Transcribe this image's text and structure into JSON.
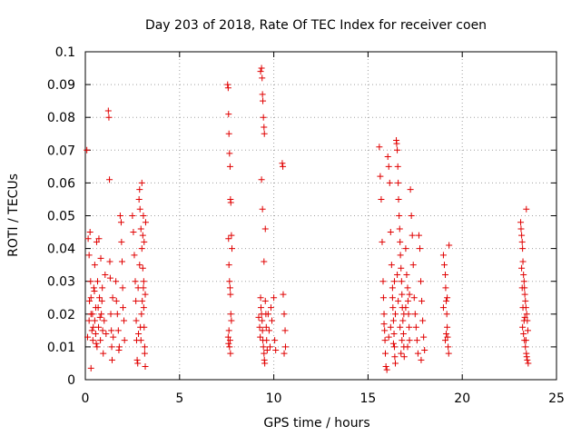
{
  "chart_data": {
    "type": "scatter",
    "title": "Day 203 of 2018, Rate Of TEC Index for receiver coen",
    "xlabel": "GPS time / hours",
    "ylabel": "ROTI / TECUs",
    "xlim": [
      0,
      25
    ],
    "ylim": [
      0,
      0.1
    ],
    "xticks": [
      "0",
      "5",
      "10",
      "15",
      "20",
      "25"
    ],
    "yticks": [
      "0",
      "0.01",
      "0.02",
      "0.03",
      "0.04",
      "0.05",
      "0.06",
      "0.07",
      "0.08",
      "0.09",
      "0.1"
    ],
    "grid": true,
    "marker": "plus",
    "color": "#e00000",
    "x_grid_values": [
      5,
      10,
      15,
      20
    ],
    "y_grid_values": [
      0.01,
      0.02,
      0.03,
      0.04,
      0.05,
      0.06,
      0.07,
      0.08,
      0.09
    ],
    "points": [
      [
        0.08,
        0.07
      ],
      [
        0.15,
        0.043
      ],
      [
        0.2,
        0.038
      ],
      [
        0.25,
        0.045
      ],
      [
        0.28,
        0.03
      ],
      [
        0.3,
        0.0035
      ],
      [
        0.3,
        0.025
      ],
      [
        0.35,
        0.015
      ],
      [
        0.38,
        0.02
      ],
      [
        0.4,
        0.012
      ],
      [
        0.45,
        0.028
      ],
      [
        0.5,
        0.018
      ],
      [
        0.5,
        0.035
      ],
      [
        0.55,
        0.022
      ],
      [
        0.6,
        0.042
      ],
      [
        0.62,
        0.01
      ],
      [
        0.65,
        0.03
      ],
      [
        0.7,
        0.016
      ],
      [
        0.72,
        0.043
      ],
      [
        0.75,
        0.025
      ],
      [
        0.8,
        0.012
      ],
      [
        0.82,
        0.037
      ],
      [
        0.85,
        0.02
      ],
      [
        0.9,
        0.028
      ],
      [
        0.95,
        0.008
      ],
      [
        1.0,
        0.018
      ],
      [
        1.05,
        0.032
      ],
      [
        1.1,
        0.014
      ],
      [
        0.2,
        0.018
      ],
      [
        0.3,
        0.02
      ],
      [
        0.42,
        0.016
      ],
      [
        0.55,
        0.014
      ],
      [
        0.68,
        0.022
      ],
      [
        0.78,
        0.019
      ],
      [
        0.88,
        0.024
      ],
      [
        0.12,
        0.013
      ],
      [
        0.22,
        0.024
      ],
      [
        0.48,
        0.027
      ],
      [
        0.58,
        0.011
      ],
      [
        0.92,
        0.015
      ],
      [
        1.22,
        0.082
      ],
      [
        1.25,
        0.08
      ],
      [
        1.28,
        0.061
      ],
      [
        1.3,
        0.036
      ],
      [
        1.32,
        0.031
      ],
      [
        1.35,
        0.02
      ],
      [
        1.38,
        0.015
      ],
      [
        1.4,
        0.01
      ],
      [
        1.42,
        0.006
      ],
      [
        1.45,
        0.025
      ],
      [
        1.48,
        0.013
      ],
      [
        1.62,
        0.03
      ],
      [
        1.65,
        0.024
      ],
      [
        1.7,
        0.02
      ],
      [
        1.75,
        0.015
      ],
      [
        1.8,
        0.01
      ],
      [
        1.85,
        0.05
      ],
      [
        1.9,
        0.048
      ],
      [
        1.92,
        0.042
      ],
      [
        1.95,
        0.036
      ],
      [
        1.98,
        0.028
      ],
      [
        2.0,
        0.022
      ],
      [
        2.05,
        0.018
      ],
      [
        2.08,
        0.012
      ],
      [
        1.78,
        0.009
      ],
      [
        2.5,
        0.05
      ],
      [
        2.55,
        0.045
      ],
      [
        2.6,
        0.038
      ],
      [
        2.65,
        0.03
      ],
      [
        2.68,
        0.024
      ],
      [
        2.7,
        0.018
      ],
      [
        2.72,
        0.012
      ],
      [
        2.75,
        0.006
      ],
      [
        2.78,
        0.005
      ],
      [
        2.8,
        0.028
      ],
      [
        2.85,
        0.055
      ],
      [
        2.88,
        0.058
      ],
      [
        2.9,
        0.052
      ],
      [
        2.95,
        0.046
      ],
      [
        3.0,
        0.04
      ],
      [
        3.0,
        0.06
      ],
      [
        3.05,
        0.034
      ],
      [
        3.08,
        0.028
      ],
      [
        3.1,
        0.022
      ],
      [
        3.12,
        0.016
      ],
      [
        3.15,
        0.01
      ],
      [
        3.18,
        0.004
      ],
      [
        3.2,
        0.048
      ],
      [
        3.05,
        0.044
      ],
      [
        2.95,
        0.012
      ],
      [
        3.1,
        0.03
      ],
      [
        2.98,
        0.02
      ],
      [
        3.15,
        0.008
      ],
      [
        2.92,
        0.016
      ],
      [
        3.02,
        0.024
      ],
      [
        2.88,
        0.035
      ],
      [
        3.12,
        0.042
      ],
      [
        2.82,
        0.014
      ],
      [
        3.18,
        0.026
      ],
      [
        3.08,
        0.05
      ],
      [
        7.55,
        0.09
      ],
      [
        7.58,
        0.089
      ],
      [
        7.6,
        0.081
      ],
      [
        7.62,
        0.075
      ],
      [
        7.65,
        0.069
      ],
      [
        7.68,
        0.065
      ],
      [
        7.7,
        0.055
      ],
      [
        7.72,
        0.054
      ],
      [
        7.75,
        0.044
      ],
      [
        7.78,
        0.04
      ],
      [
        7.6,
        0.043
      ],
      [
        7.62,
        0.035
      ],
      [
        7.65,
        0.03
      ],
      [
        7.68,
        0.028
      ],
      [
        7.7,
        0.026
      ],
      [
        7.72,
        0.02
      ],
      [
        7.75,
        0.018
      ],
      [
        7.58,
        0.013
      ],
      [
        7.6,
        0.011
      ],
      [
        7.65,
        0.01
      ],
      [
        7.7,
        0.008
      ],
      [
        7.62,
        0.015
      ],
      [
        7.68,
        0.012
      ],
      [
        9.3,
        0.094
      ],
      [
        9.35,
        0.095
      ],
      [
        9.38,
        0.092
      ],
      [
        9.4,
        0.087
      ],
      [
        9.42,
        0.085
      ],
      [
        9.45,
        0.08
      ],
      [
        9.48,
        0.077
      ],
      [
        9.5,
        0.075
      ],
      [
        9.35,
        0.061
      ],
      [
        9.4,
        0.052
      ],
      [
        9.55,
        0.046
      ],
      [
        9.48,
        0.036
      ],
      [
        9.3,
        0.025
      ],
      [
        9.32,
        0.022
      ],
      [
        9.35,
        0.02
      ],
      [
        9.38,
        0.018
      ],
      [
        9.4,
        0.015
      ],
      [
        9.42,
        0.012
      ],
      [
        9.45,
        0.01
      ],
      [
        9.48,
        0.008
      ],
      [
        9.5,
        0.006
      ],
      [
        9.52,
        0.005
      ],
      [
        9.55,
        0.024
      ],
      [
        9.58,
        0.02
      ],
      [
        9.6,
        0.016
      ],
      [
        9.62,
        0.012
      ],
      [
        9.65,
        0.009
      ],
      [
        9.2,
        0.019
      ],
      [
        9.25,
        0.016
      ],
      [
        9.28,
        0.013
      ],
      [
        9.7,
        0.02
      ],
      [
        9.75,
        0.015
      ],
      [
        9.8,
        0.01
      ],
      [
        9.85,
        0.022
      ],
      [
        9.9,
        0.018
      ],
      [
        10.0,
        0.025
      ],
      [
        10.05,
        0.012
      ],
      [
        10.1,
        0.009
      ],
      [
        10.45,
        0.066
      ],
      [
        10.48,
        0.065
      ],
      [
        10.5,
        0.026
      ],
      [
        10.55,
        0.02
      ],
      [
        10.6,
        0.015
      ],
      [
        10.62,
        0.01
      ],
      [
        10.55,
        0.008
      ],
      [
        15.6,
        0.071
      ],
      [
        15.65,
        0.062
      ],
      [
        15.7,
        0.055
      ],
      [
        15.75,
        0.042
      ],
      [
        15.8,
        0.03
      ],
      [
        15.82,
        0.025
      ],
      [
        15.85,
        0.02
      ],
      [
        15.88,
        0.015
      ],
      [
        15.9,
        0.012
      ],
      [
        15.92,
        0.008
      ],
      [
        15.95,
        0.004
      ],
      [
        16.0,
        0.003
      ],
      [
        16.05,
        0.068
      ],
      [
        16.1,
        0.065
      ],
      [
        16.15,
        0.06
      ],
      [
        16.2,
        0.045
      ],
      [
        16.25,
        0.035
      ],
      [
        16.3,
        0.025
      ],
      [
        16.32,
        0.022
      ],
      [
        16.35,
        0.018
      ],
      [
        16.38,
        0.014
      ],
      [
        16.4,
        0.01
      ],
      [
        16.42,
        0.007
      ],
      [
        16.45,
        0.005
      ],
      [
        16.5,
        0.073
      ],
      [
        16.52,
        0.072
      ],
      [
        16.55,
        0.07
      ],
      [
        16.58,
        0.065
      ],
      [
        16.6,
        0.06
      ],
      [
        16.62,
        0.055
      ],
      [
        16.65,
        0.05
      ],
      [
        16.68,
        0.046
      ],
      [
        16.7,
        0.042
      ],
      [
        16.72,
        0.038
      ],
      [
        16.75,
        0.034
      ],
      [
        16.78,
        0.03
      ],
      [
        16.8,
        0.026
      ],
      [
        16.82,
        0.022
      ],
      [
        16.85,
        0.018
      ],
      [
        16.88,
        0.014
      ],
      [
        16.9,
        0.01
      ],
      [
        16.92,
        0.007
      ],
      [
        17.0,
        0.04
      ],
      [
        17.05,
        0.032
      ],
      [
        17.1,
        0.028
      ],
      [
        17.12,
        0.024
      ],
      [
        17.15,
        0.02
      ],
      [
        17.18,
        0.016
      ],
      [
        17.2,
        0.012
      ],
      [
        17.25,
        0.058
      ],
      [
        17.3,
        0.05
      ],
      [
        17.35,
        0.044
      ],
      [
        17.4,
        0.035
      ],
      [
        17.45,
        0.025
      ],
      [
        17.5,
        0.02
      ],
      [
        17.55,
        0.016
      ],
      [
        17.6,
        0.012
      ],
      [
        17.65,
        0.008
      ],
      [
        17.7,
        0.044
      ],
      [
        17.75,
        0.04
      ],
      [
        17.8,
        0.03
      ],
      [
        17.85,
        0.024
      ],
      [
        17.9,
        0.018
      ],
      [
        17.95,
        0.013
      ],
      [
        18.0,
        0.009
      ],
      [
        17.82,
        0.006
      ],
      [
        16.3,
        0.028
      ],
      [
        16.6,
        0.024
      ],
      [
        16.7,
        0.016
      ],
      [
        16.9,
        0.02
      ],
      [
        17.1,
        0.01
      ],
      [
        16.2,
        0.016
      ],
      [
        16.4,
        0.03
      ],
      [
        16.8,
        0.012
      ],
      [
        17.0,
        0.022
      ],
      [
        16.55,
        0.032
      ],
      [
        16.45,
        0.02
      ],
      [
        16.35,
        0.011
      ],
      [
        16.75,
        0.008
      ],
      [
        17.2,
        0.026
      ],
      [
        15.85,
        0.017
      ],
      [
        16.1,
        0.013
      ],
      [
        19.0,
        0.038
      ],
      [
        19.05,
        0.035
      ],
      [
        19.1,
        0.032
      ],
      [
        19.12,
        0.028
      ],
      [
        19.15,
        0.024
      ],
      [
        19.18,
        0.02
      ],
      [
        19.2,
        0.016
      ],
      [
        19.22,
        0.013
      ],
      [
        19.25,
        0.01
      ],
      [
        19.28,
        0.008
      ],
      [
        19.3,
        0.041
      ],
      [
        19.0,
        0.022
      ],
      [
        19.1,
        0.012
      ],
      [
        19.2,
        0.025
      ],
      [
        19.15,
        0.014
      ],
      [
        23.1,
        0.048
      ],
      [
        23.12,
        0.046
      ],
      [
        23.15,
        0.044
      ],
      [
        23.18,
        0.042
      ],
      [
        23.2,
        0.04
      ],
      [
        23.22,
        0.036
      ],
      [
        23.25,
        0.032
      ],
      [
        23.28,
        0.03
      ],
      [
        23.3,
        0.028
      ],
      [
        23.32,
        0.026
      ],
      [
        23.35,
        0.024
      ],
      [
        23.38,
        0.022
      ],
      [
        23.4,
        0.052
      ],
      [
        23.42,
        0.02
      ],
      [
        23.45,
        0.018
      ],
      [
        23.2,
        0.016
      ],
      [
        23.25,
        0.014
      ],
      [
        23.3,
        0.012
      ],
      [
        23.35,
        0.01
      ],
      [
        23.4,
        0.008
      ],
      [
        23.45,
        0.006
      ],
      [
        23.5,
        0.005
      ],
      [
        23.15,
        0.034
      ],
      [
        23.28,
        0.018
      ],
      [
        23.38,
        0.012
      ],
      [
        23.22,
        0.022
      ],
      [
        23.32,
        0.019
      ],
      [
        23.42,
        0.007
      ],
      [
        23.18,
        0.028
      ],
      [
        23.48,
        0.015
      ]
    ]
  }
}
